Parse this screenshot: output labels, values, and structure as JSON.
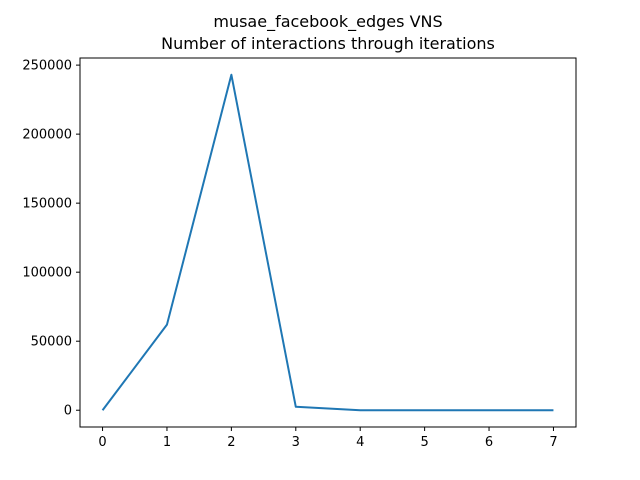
{
  "chart_data": {
    "type": "line",
    "title_line1": "musae_facebook_edges VNS",
    "title_line2": "Number of interactions through iterations",
    "xlabel": "",
    "ylabel": "",
    "x": [
      0,
      1,
      2,
      3,
      4,
      5,
      6,
      7
    ],
    "series": [
      {
        "values": [
          0,
          62000,
          243000,
          2500,
          0,
          0,
          0,
          0
        ],
        "color": "#1f77b4"
      }
    ],
    "x_ticks": [
      0,
      1,
      2,
      3,
      4,
      5,
      6,
      7
    ],
    "x_tick_labels": [
      "0",
      "1",
      "2",
      "3",
      "4",
      "5",
      "6",
      "7"
    ],
    "y_ticks": [
      0,
      50000,
      100000,
      150000,
      200000,
      250000
    ],
    "y_tick_labels": [
      "0",
      "50000",
      "100000",
      "150000",
      "200000",
      "250000"
    ],
    "xlim": [
      -0.35,
      7.35
    ],
    "ylim": [
      -12150,
      255150
    ],
    "grid": false,
    "legend": "none"
  }
}
